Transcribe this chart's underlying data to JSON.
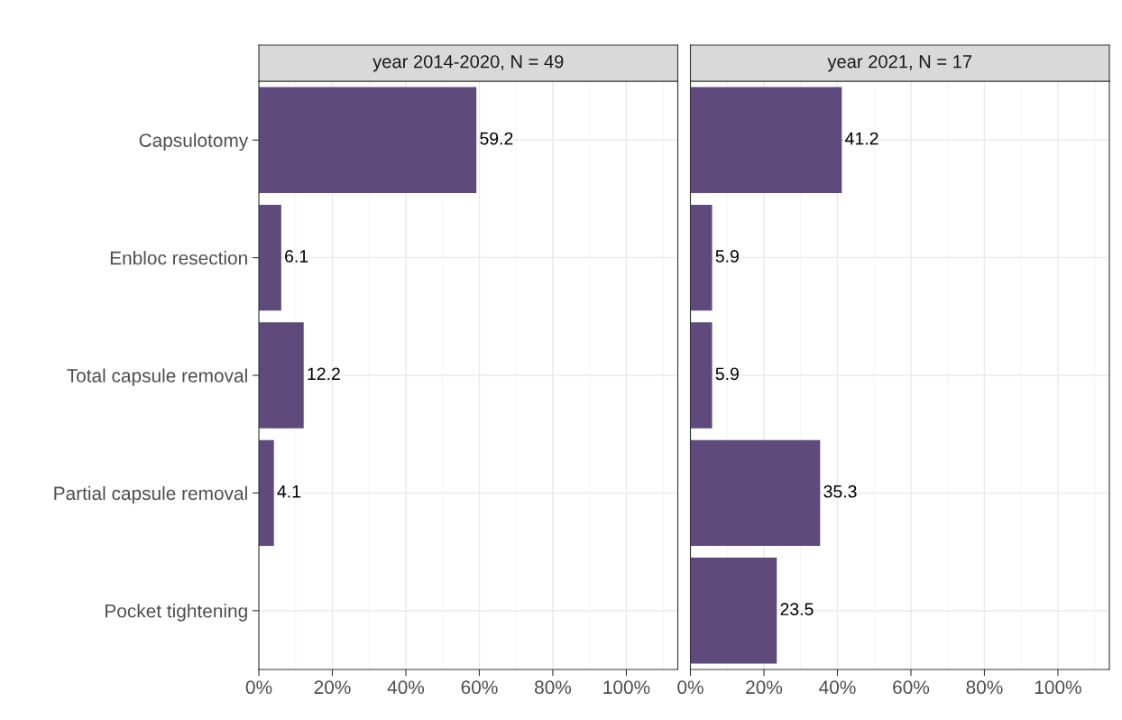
{
  "chart_data": [
    {
      "type": "bar",
      "orientation": "horizontal",
      "title": "year 2014-2020, N = 49",
      "categories": [
        "Capsulotomy",
        "Enbloc resection",
        "Total capsule removal",
        "Partial capsule removal",
        "Pocket tightening"
      ],
      "values": [
        59.2,
        6.1,
        12.2,
        4.1,
        null
      ],
      "color": "#5f4b7b",
      "data_labels": true,
      "xlim": [
        0,
        114
      ],
      "xticks": [
        {
          "value": 0,
          "label": "0%"
        },
        {
          "value": 10,
          "label": null
        },
        {
          "value": 20,
          "label": "20%"
        },
        {
          "value": 30,
          "label": null
        },
        {
          "value": 40,
          "label": "40%"
        },
        {
          "value": 50,
          "label": null
        },
        {
          "value": 60,
          "label": "60%"
        },
        {
          "value": 70,
          "label": null
        },
        {
          "value": 80,
          "label": "80%"
        },
        {
          "value": 90,
          "label": null
        },
        {
          "value": 100,
          "label": "100%"
        },
        {
          "value": 110,
          "label": null
        }
      ],
      "grid": true
    },
    {
      "type": "bar",
      "orientation": "horizontal",
      "title": "year 2021, N = 17",
      "values": [
        41.2,
        5.9,
        5.9,
        35.3,
        23.5
      ],
      "color": "#5f4b7b",
      "data_labels": true,
      "xlim": [
        0,
        114
      ],
      "xticks": [
        {
          "value": 0,
          "label": "0%"
        },
        {
          "value": 10,
          "label": null
        },
        {
          "value": 20,
          "label": "20%"
        },
        {
          "value": 30,
          "label": null
        },
        {
          "value": 40,
          "label": "40%"
        },
        {
          "value": 50,
          "label": null
        },
        {
          "value": 60,
          "label": "60%"
        },
        {
          "value": 70,
          "label": null
        },
        {
          "value": 80,
          "label": "80%"
        },
        {
          "value": 90,
          "label": null
        },
        {
          "value": 100,
          "label": "100%"
        },
        {
          "value": 110,
          "label": null
        }
      ],
      "grid": true,
      "tick_labels": "x"
    }
  ]
}
